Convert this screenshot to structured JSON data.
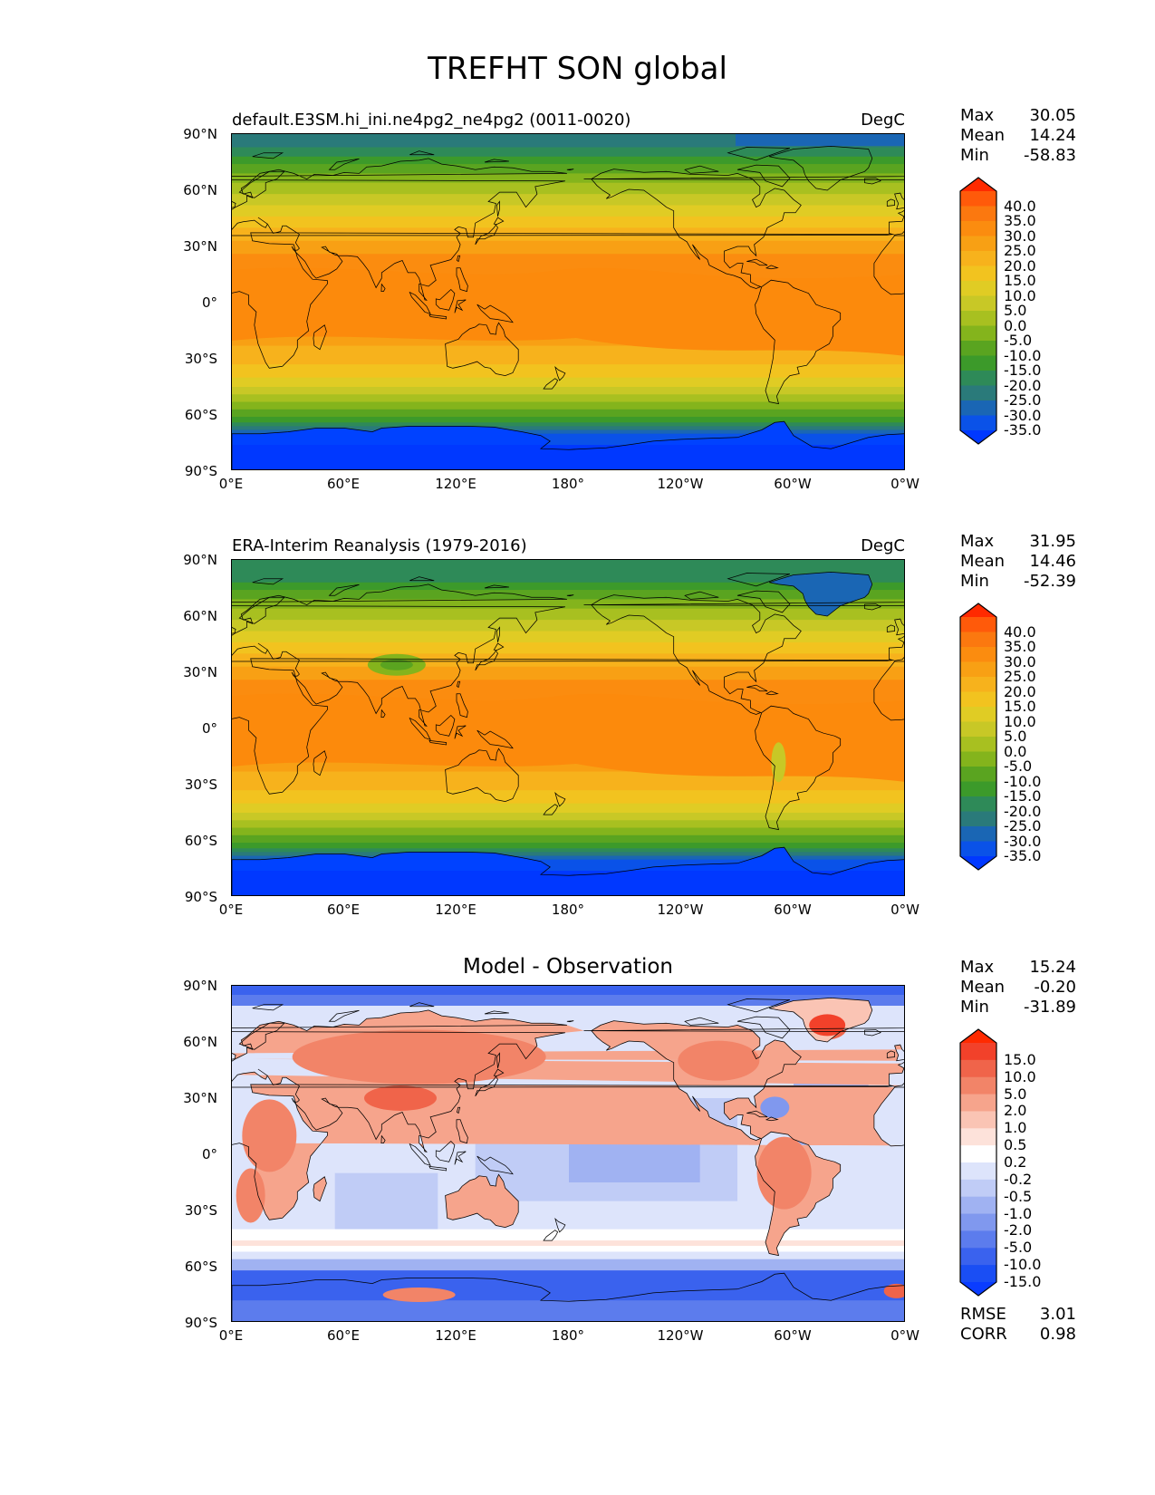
{
  "title": "TREFHT SON global",
  "axes": {
    "lat_labels": [
      "90°N",
      "60°N",
      "30°N",
      "0°",
      "30°S",
      "60°S",
      "90°S"
    ],
    "lon_labels": [
      "0°E",
      "60°E",
      "120°E",
      "180°",
      "120°W",
      "60°W",
      "0°W"
    ]
  },
  "panels": [
    {
      "title_left": "default.E3SM.hi_ini.ne4pg2_ne4pg2 (0011-0020)",
      "title_center": "",
      "units": "DegC",
      "stats": [
        {
          "label": "Max",
          "value": "30.05"
        },
        {
          "label": "Mean",
          "value": "14.24"
        },
        {
          "label": "Min",
          "value": "-58.83"
        }
      ],
      "colorbar": {
        "labels": [
          "40.0",
          "35.0",
          "30.0",
          "25.0",
          "20.0",
          "15.0",
          "10.0",
          "5.0",
          "0.0",
          "-5.0",
          "-10.0",
          "-15.0",
          "-20.0",
          "-25.0",
          "-30.0",
          "-35.0"
        ],
        "colors": [
          "#ff2a00",
          "#ff5a0a",
          "#fb780f",
          "#fb8c0f",
          "#f8a014",
          "#f7b21c",
          "#f2c31f",
          "#e0cc24",
          "#c8c826",
          "#a8c020",
          "#84b41c",
          "#5aa420",
          "#3c9a2a",
          "#2e8a58",
          "#2a7a7a",
          "#1a66b4",
          "#0a52e8",
          "#0038ff"
        ]
      },
      "extra_stats": []
    },
    {
      "title_left": "ERA-Interim Reanalysis (1979-2016)",
      "title_center": "",
      "units": "DegC",
      "stats": [
        {
          "label": "Max",
          "value": "31.95"
        },
        {
          "label": "Mean",
          "value": "14.46"
        },
        {
          "label": "Min",
          "value": "-52.39"
        }
      ],
      "colorbar": {
        "labels": [
          "40.0",
          "35.0",
          "30.0",
          "25.0",
          "20.0",
          "15.0",
          "10.0",
          "5.0",
          "0.0",
          "-5.0",
          "-10.0",
          "-15.0",
          "-20.0",
          "-25.0",
          "-30.0",
          "-35.0"
        ],
        "colors": [
          "#ff2a00",
          "#ff5a0a",
          "#fb780f",
          "#fb8c0f",
          "#f8a014",
          "#f7b21c",
          "#f2c31f",
          "#e0cc24",
          "#c8c826",
          "#a8c020",
          "#84b41c",
          "#5aa420",
          "#3c9a2a",
          "#2e8a58",
          "#2a7a7a",
          "#1a66b4",
          "#0a52e8",
          "#0038ff"
        ]
      },
      "extra_stats": []
    },
    {
      "title_left": "",
      "title_center": "Model - Observation",
      "units": "",
      "stats": [
        {
          "label": "Max",
          "value": "15.24"
        },
        {
          "label": "Mean",
          "value": "-0.20"
        },
        {
          "label": "Min",
          "value": "-31.89"
        }
      ],
      "colorbar": {
        "labels": [
          "15.0",
          "10.0",
          "5.0",
          "2.0",
          "1.0",
          "0.5",
          "0.2",
          "-0.2",
          "-0.5",
          "-1.0",
          "-2.0",
          "-5.0",
          "-10.0",
          "-15.0"
        ],
        "colors": [
          "#ff2a00",
          "#f2412a",
          "#f0644a",
          "#f28468",
          "#f6a48c",
          "#fac4b4",
          "#fde2da",
          "#ffffff",
          "#dde4fb",
          "#c0ccf6",
          "#a0b2f2",
          "#8098ee",
          "#5c7ced",
          "#3a62ee",
          "#1a4ef4",
          "#0a3cff"
        ]
      },
      "extra_stats": [
        {
          "label": "RMSE",
          "value": "3.01"
        },
        {
          "label": "CORR",
          "value": "0.98"
        }
      ]
    }
  ]
}
